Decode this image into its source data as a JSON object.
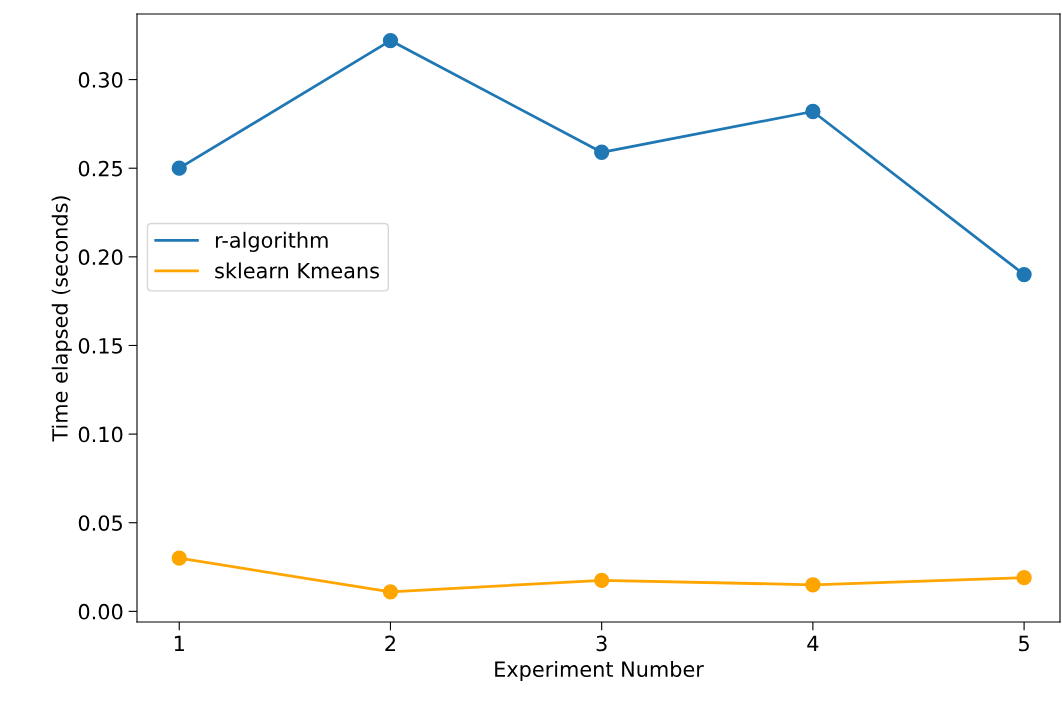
{
  "chart_data": {
    "type": "line",
    "xlabel": "Experiment Number",
    "ylabel": "Time elapsed (seconds)",
    "x": [
      1,
      2,
      3,
      4,
      5
    ],
    "series": [
      {
        "name": "r-algorithm",
        "color": "#1f77b4",
        "values": [
          0.25,
          0.322,
          0.259,
          0.282,
          0.19
        ]
      },
      {
        "name": "sklearn Kmeans",
        "color": "#ffa500",
        "values": [
          0.03,
          0.011,
          0.0175,
          0.015,
          0.019
        ]
      }
    ],
    "xlim": [
      0.8,
      5.17
    ],
    "xticks": [
      1,
      2,
      3,
      4,
      5
    ],
    "ylim": [
      -0.006,
      0.337
    ],
    "yticks": [
      {
        "value": 0,
        "label": "0.00"
      },
      {
        "value": 0.05,
        "label": "0.05"
      },
      {
        "value": 0.1,
        "label": "0.10"
      },
      {
        "value": 0.15,
        "label": "0.15"
      },
      {
        "value": 0.2,
        "label": "0.20"
      },
      {
        "value": 0.25,
        "label": "0.25"
      },
      {
        "value": 0.3,
        "label": "0.30"
      }
    ],
    "marker": "circle",
    "line_style": "solid",
    "grid": false,
    "legend": "left"
  }
}
